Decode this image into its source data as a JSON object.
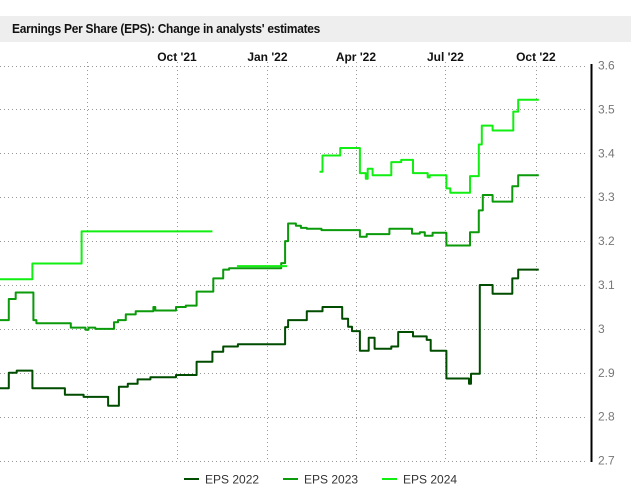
{
  "title": "Earnings Per Share (EPS): Change in analysts' estimates",
  "chart_data": {
    "type": "line",
    "step": true,
    "title": "Earnings Per Share (EPS): Change in analysts' estimates",
    "xlabel": "",
    "ylabel": "",
    "xlim": [
      "2021-04-04",
      "2022-11-27"
    ],
    "ylim": [
      2.7,
      3.6
    ],
    "y_axis_position": "right",
    "grid": true,
    "legend_position": "bottom",
    "x_gridlines": [
      "2021-07-01",
      "2021-10-01",
      "2022-01-01",
      "2022-04-01",
      "2022-07-01",
      "2022-10-01"
    ],
    "x_ticks": [
      {
        "date": "2021-10-01",
        "label": "Oct '21"
      },
      {
        "date": "2022-01-01",
        "label": "Jan '22"
      },
      {
        "date": "2022-04-01",
        "label": "Apr '22"
      },
      {
        "date": "2022-07-01",
        "label": "Jul '22"
      },
      {
        "date": "2022-10-01",
        "label": "Oct '22"
      }
    ],
    "y_ticks": [
      {
        "value": 2.7,
        "label": "2.7"
      },
      {
        "value": 2.8,
        "label": "2.8"
      },
      {
        "value": 2.9,
        "label": "2.9"
      },
      {
        "value": 3.0,
        "label": "3"
      },
      {
        "value": 3.1,
        "label": "3.1"
      },
      {
        "value": 3.2,
        "label": "3.2"
      },
      {
        "value": 3.3,
        "label": "3.3"
      },
      {
        "value": 3.4,
        "label": "3.4"
      },
      {
        "value": 3.5,
        "label": "3.5"
      },
      {
        "value": 3.6,
        "label": "3.6"
      }
    ],
    "series": [
      {
        "name": "EPS 2022",
        "color": "#004d00",
        "segments": [
          [
            [
              "2021-04-04",
              2.865
            ],
            [
              "2021-04-13",
              2.9
            ],
            [
              "2021-04-21",
              2.905
            ],
            [
              "2021-05-07",
              2.865
            ],
            [
              "2021-06-09",
              2.85
            ],
            [
              "2021-06-28",
              2.845
            ],
            [
              "2021-07-23",
              2.825
            ],
            [
              "2021-08-03",
              2.868
            ],
            [
              "2021-08-12",
              2.875
            ],
            [
              "2021-08-22",
              2.885
            ],
            [
              "2021-09-04",
              2.89
            ],
            [
              "2021-09-30",
              2.895
            ],
            [
              "2021-10-21",
              2.925
            ],
            [
              "2021-11-06",
              2.948
            ],
            [
              "2021-11-17",
              2.96
            ],
            [
              "2021-12-02",
              2.965
            ],
            [
              "2022-01-19",
              3.004
            ],
            [
              "2022-01-22",
              3.02
            ],
            [
              "2022-02-10",
              3.04
            ],
            [
              "2022-02-26",
              3.05
            ],
            [
              "2022-03-18",
              3.023
            ],
            [
              "2022-03-24",
              3.005
            ],
            [
              "2022-03-28",
              2.995
            ],
            [
              "2022-04-05",
              2.95
            ],
            [
              "2022-04-14",
              2.98
            ],
            [
              "2022-04-20",
              2.955
            ],
            [
              "2022-05-07",
              2.96
            ],
            [
              "2022-05-14",
              2.993
            ],
            [
              "2022-05-29",
              2.983
            ],
            [
              "2022-06-12",
              2.975
            ],
            [
              "2022-06-16",
              2.95
            ],
            [
              "2022-07-02",
              2.887
            ],
            [
              "2022-07-25",
              2.875
            ],
            [
              "2022-07-27",
              2.898
            ],
            [
              "2022-08-05",
              3.1
            ],
            [
              "2022-08-18",
              3.08
            ],
            [
              "2022-09-07",
              3.115
            ],
            [
              "2022-09-13",
              3.135
            ],
            [
              "2022-10-04",
              3.135
            ]
          ]
        ]
      },
      {
        "name": "EPS 2023",
        "color": "#0a9a0a",
        "segments": [
          [
            [
              "2021-04-04",
              3.02
            ],
            [
              "2021-04-13",
              3.068
            ],
            [
              "2021-04-20",
              3.083
            ],
            [
              "2021-05-08",
              3.02
            ],
            [
              "2021-05-11",
              3.013
            ],
            [
              "2021-06-15",
              3.003
            ],
            [
              "2021-06-30",
              2.998
            ],
            [
              "2021-07-03",
              3.003
            ],
            [
              "2021-07-10",
              3.0
            ],
            [
              "2021-07-29",
              3.015
            ],
            [
              "2021-08-02",
              3.02
            ],
            [
              "2021-08-10",
              3.033
            ],
            [
              "2021-08-20",
              3.04
            ],
            [
              "2021-09-07",
              3.05
            ],
            [
              "2021-09-09",
              3.042
            ],
            [
              "2021-09-30",
              3.05
            ],
            [
              "2021-10-10",
              3.053
            ],
            [
              "2021-10-21",
              3.085
            ],
            [
              "2021-11-07",
              3.115
            ],
            [
              "2021-11-17",
              3.135
            ],
            [
              "2021-11-23",
              3.138
            ],
            [
              "2022-01-15",
              3.15
            ],
            [
              "2022-01-19",
              3.2
            ],
            [
              "2022-01-22",
              3.24
            ],
            [
              "2022-01-30",
              3.235
            ],
            [
              "2022-02-04",
              3.23
            ],
            [
              "2022-02-10",
              3.228
            ],
            [
              "2022-02-25",
              3.225
            ],
            [
              "2022-04-05",
              3.21
            ],
            [
              "2022-04-12",
              3.216
            ],
            [
              "2022-05-05",
              3.228
            ],
            [
              "2022-05-28",
              3.217
            ],
            [
              "2022-06-05",
              3.22
            ],
            [
              "2022-06-10",
              3.212
            ],
            [
              "2022-06-18",
              3.219
            ],
            [
              "2022-07-02",
              3.19
            ],
            [
              "2022-07-26",
              3.22
            ],
            [
              "2022-08-04",
              3.27
            ],
            [
              "2022-08-08",
              3.305
            ],
            [
              "2022-08-18",
              3.29
            ],
            [
              "2022-09-07",
              3.325
            ],
            [
              "2022-09-13",
              3.35
            ],
            [
              "2022-10-04",
              3.35
            ]
          ]
        ]
      },
      {
        "name": "EPS 2024",
        "color": "#11ee11",
        "segments": [
          [
            [
              "2021-04-04",
              3.113
            ],
            [
              "2021-05-07",
              3.149
            ],
            [
              "2021-06-26",
              3.222
            ],
            [
              "2021-11-06",
              3.222
            ]
          ],
          [
            [
              "2021-12-01",
              3.143
            ],
            [
              "2022-01-21",
              3.143
            ]
          ],
          [
            [
              "2022-02-23",
              3.358
            ],
            [
              "2022-02-26",
              3.395
            ],
            [
              "2022-03-16",
              3.412
            ],
            [
              "2022-04-05",
              3.355
            ],
            [
              "2022-04-11",
              3.342
            ],
            [
              "2022-04-13",
              3.365
            ],
            [
              "2022-04-18",
              3.35
            ],
            [
              "2022-05-07",
              3.38
            ],
            [
              "2022-05-17",
              3.385
            ],
            [
              "2022-05-29",
              3.355
            ],
            [
              "2022-06-13",
              3.345
            ],
            [
              "2022-06-15",
              3.35
            ],
            [
              "2022-07-02",
              3.32
            ],
            [
              "2022-07-06",
              3.31
            ],
            [
              "2022-07-26",
              3.348
            ],
            [
              "2022-08-04",
              3.42
            ],
            [
              "2022-08-07",
              3.463
            ],
            [
              "2022-08-18",
              3.452
            ],
            [
              "2022-09-08",
              3.495
            ],
            [
              "2022-09-13",
              3.522
            ],
            [
              "2022-10-04",
              3.522
            ]
          ]
        ]
      }
    ]
  }
}
